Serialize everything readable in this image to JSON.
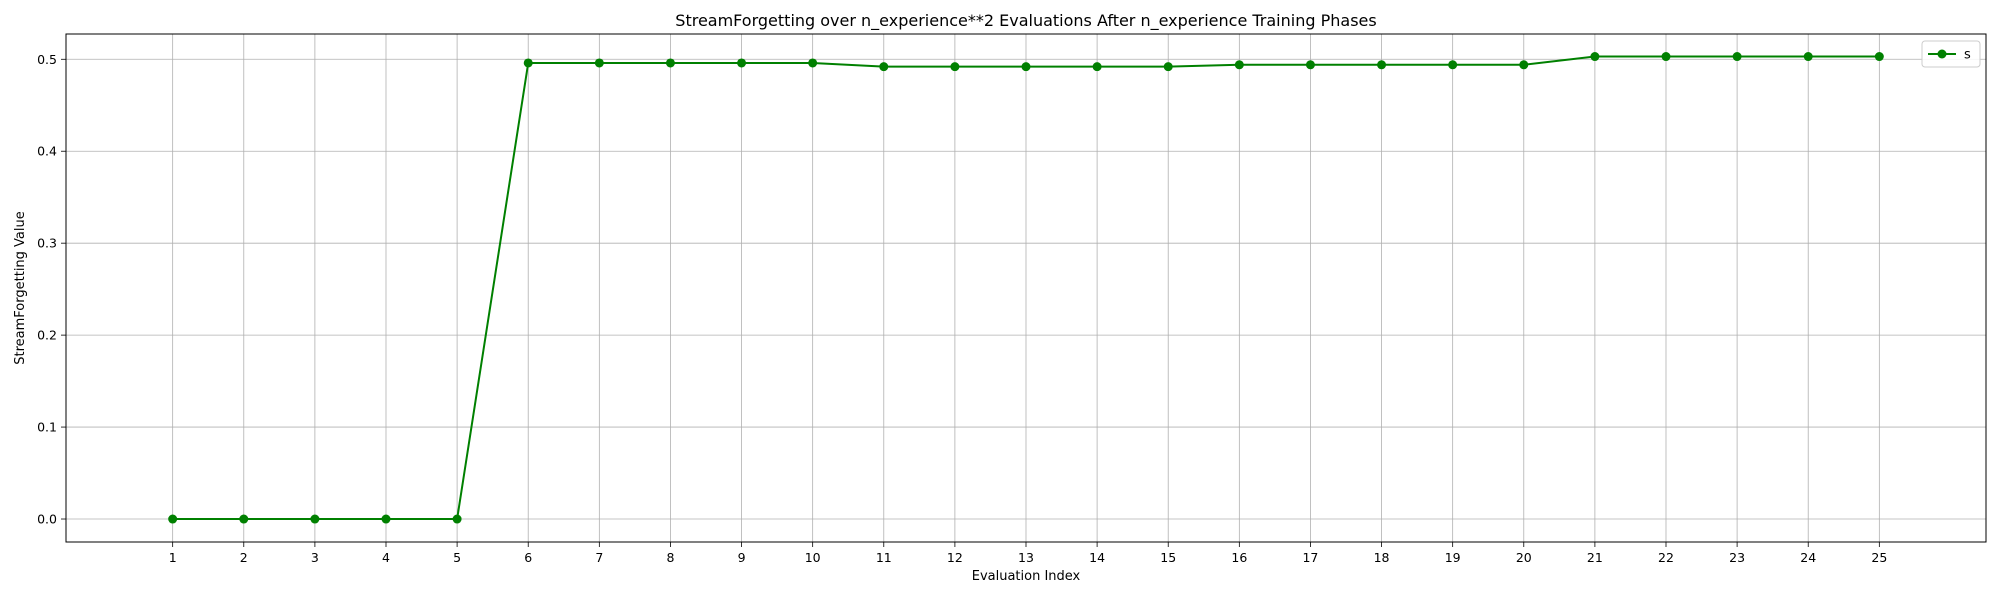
{
  "chart_data": {
    "type": "line",
    "title": "StreamForgetting over n_experience**2 Evaluations After n_experience Training Phases",
    "xlabel": "Evaluation Index",
    "ylabel": "StreamForgetting Value",
    "x": [
      1,
      2,
      3,
      4,
      5,
      6,
      7,
      8,
      9,
      10,
      11,
      12,
      13,
      14,
      15,
      16,
      17,
      18,
      19,
      20,
      21,
      22,
      23,
      24,
      25
    ],
    "xlim": [
      -0.5,
      26.5
    ],
    "ylim": [
      -0.025,
      0.5275
    ],
    "yticks": [
      0.0,
      0.1,
      0.2,
      0.3,
      0.4,
      0.5
    ],
    "grid": true,
    "legend_position": "upper right",
    "series": [
      {
        "name": "s",
        "color": "#008000",
        "marker": "circle",
        "values": [
          0.0,
          0.0,
          0.0,
          0.0,
          0.0,
          0.496,
          0.496,
          0.496,
          0.496,
          0.496,
          0.492,
          0.492,
          0.492,
          0.492,
          0.492,
          0.494,
          0.494,
          0.494,
          0.494,
          0.494,
          0.503,
          0.503,
          0.503,
          0.503,
          0.503
        ]
      }
    ]
  }
}
